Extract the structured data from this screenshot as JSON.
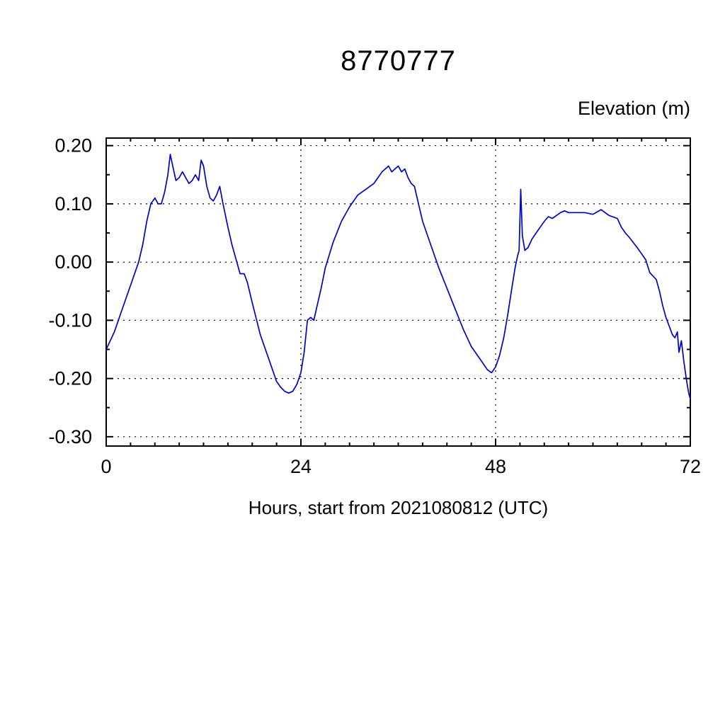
{
  "page": {
    "background": "#ffffff"
  },
  "chart_data": {
    "type": "line",
    "title": "8770777",
    "y_axis_label": "Elevation (m)",
    "x_axis_label": "Hours, start from 2021080812 (UTC)",
    "xlim": [
      0,
      72
    ],
    "ylim": [
      -0.316,
      0.213
    ],
    "x_ticks": [
      0,
      24,
      48,
      72
    ],
    "x_tick_labels": [
      "0",
      "24",
      "48",
      "72"
    ],
    "y_ticks": [
      0.2,
      0.1,
      0.0,
      -0.1,
      -0.2,
      -0.3
    ],
    "y_tick_labels": [
      "0.20",
      "0.10",
      "0.00",
      "-0.10",
      "-0.20",
      "-0.30"
    ],
    "x_minor_step": 3,
    "y_minor_step": 0.05,
    "grid": "dashed",
    "grid_x_values": [
      24,
      48
    ],
    "axis_color": "#000000",
    "line_color": "#0000cd",
    "legend": "none",
    "series": [
      {
        "name": "elevation",
        "color": "#0000cd",
        "x": [
          0,
          1,
          2,
          3,
          4,
          4.5,
          5,
          5.5,
          6,
          6.4,
          6.8,
          7.2,
          7.6,
          7.9,
          8.2,
          8.6,
          9,
          9.4,
          9.8,
          10.2,
          10.6,
          11,
          11.4,
          11.7,
          12,
          12.4,
          12.8,
          13.2,
          13.6,
          14,
          14.4,
          15,
          15.5,
          16,
          16.5,
          17,
          17.4,
          18,
          19,
          20,
          20.5,
          21,
          21.5,
          22,
          22.5,
          23,
          23.5,
          24,
          24.4,
          24.8,
          25.2,
          25.6,
          26,
          26.5,
          27,
          28,
          29,
          30,
          31,
          32,
          33,
          33.5,
          34,
          34.4,
          34.8,
          35.2,
          35.6,
          36,
          36.4,
          36.8,
          37.2,
          37.6,
          38,
          38.5,
          39,
          40,
          41,
          42,
          43,
          44,
          45,
          46,
          46.5,
          47,
          47.5,
          48,
          48.5,
          49,
          49.5,
          50,
          50.4,
          50.7,
          50.9,
          51.1,
          51.3,
          51.6,
          52,
          52.5,
          53,
          53.5,
          54,
          54.5,
          55,
          55.5,
          56,
          56.5,
          57,
          58,
          59,
          60,
          60.5,
          61,
          61.5,
          62,
          63,
          63.5,
          64,
          64.5,
          65,
          65.5,
          66,
          66.5,
          67,
          67.4,
          67.8,
          68.2,
          68.6,
          69,
          69.4,
          69.8,
          70.1,
          70.4,
          70.6,
          70.9,
          71.2,
          71.5,
          71.8,
          72
        ],
        "y": [
          -0.15,
          -0.12,
          -0.08,
          -0.04,
          0.0,
          0.03,
          0.07,
          0.1,
          0.11,
          0.1,
          0.1,
          0.12,
          0.15,
          0.185,
          0.165,
          0.14,
          0.145,
          0.155,
          0.145,
          0.135,
          0.14,
          0.15,
          0.14,
          0.175,
          0.165,
          0.13,
          0.11,
          0.105,
          0.115,
          0.13,
          0.1,
          0.06,
          0.03,
          0.005,
          -0.02,
          -0.02,
          -0.035,
          -0.07,
          -0.125,
          -0.165,
          -0.185,
          -0.205,
          -0.215,
          -0.222,
          -0.225,
          -0.222,
          -0.21,
          -0.19,
          -0.155,
          -0.1,
          -0.095,
          -0.1,
          -0.075,
          -0.045,
          -0.01,
          0.035,
          0.07,
          0.095,
          0.115,
          0.125,
          0.135,
          0.145,
          0.155,
          0.16,
          0.165,
          0.155,
          0.16,
          0.165,
          0.155,
          0.16,
          0.145,
          0.135,
          0.13,
          0.1,
          0.07,
          0.03,
          -0.01,
          -0.045,
          -0.08,
          -0.115,
          -0.145,
          -0.165,
          -0.175,
          -0.185,
          -0.19,
          -0.18,
          -0.16,
          -0.13,
          -0.09,
          -0.045,
          -0.01,
          0.01,
          0.02,
          0.125,
          0.045,
          0.02,
          0.025,
          0.04,
          0.05,
          0.06,
          0.07,
          0.078,
          0.075,
          0.08,
          0.085,
          0.088,
          0.085,
          0.085,
          0.085,
          0.082,
          0.086,
          0.09,
          0.085,
          0.08,
          0.075,
          0.06,
          0.05,
          0.042,
          0.033,
          0.024,
          0.014,
          0.004,
          -0.018,
          -0.024,
          -0.03,
          -0.05,
          -0.075,
          -0.095,
          -0.11,
          -0.125,
          -0.13,
          -0.12,
          -0.155,
          -0.135,
          -0.17,
          -0.2,
          -0.225,
          -0.235
        ]
      }
    ]
  }
}
